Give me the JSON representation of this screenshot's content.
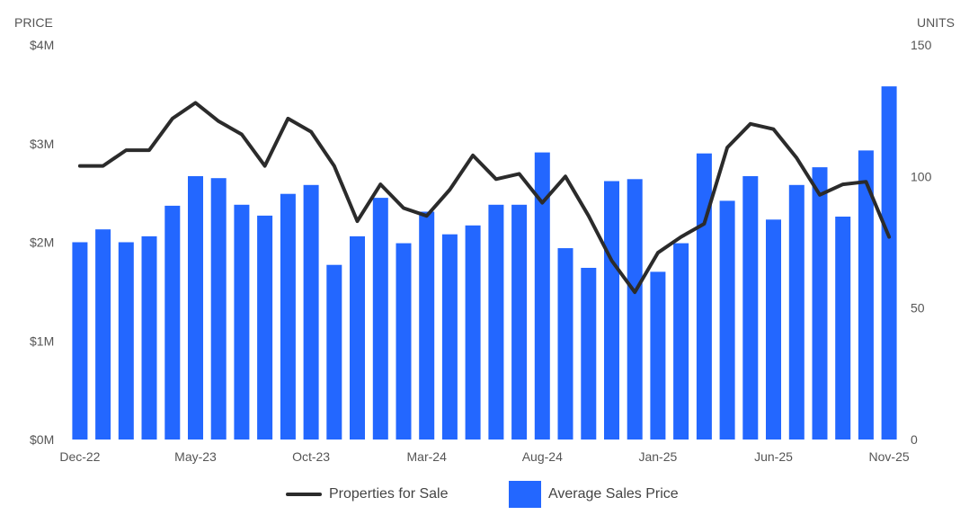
{
  "chart_data": {
    "type": "bar+line",
    "left_axis_title": "PRICE",
    "right_axis_title": "UNITS",
    "left_ticks": [
      "$0M",
      "$1M",
      "$2M",
      "$3M",
      "$4M"
    ],
    "right_ticks": [
      "0",
      "50",
      "100",
      "150"
    ],
    "left_ylim": [
      0,
      4000000
    ],
    "right_ylim": [
      0,
      150
    ],
    "x_tick_labels": [
      "Dec-22",
      "May-23",
      "Oct-23",
      "Mar-24",
      "Aug-24",
      "Jan-25",
      "Jun-25",
      "Nov-25"
    ],
    "categories": [
      "Dec-22",
      "Jan-23",
      "Feb-23",
      "Mar-23",
      "Apr-23",
      "May-23",
      "Jun-23",
      "Jul-23",
      "Aug-23",
      "Sep-23",
      "Oct-23",
      "Nov-23",
      "Dec-23",
      "Jan-24",
      "Feb-24",
      "Mar-24",
      "Apr-24",
      "May-24",
      "Jun-24",
      "Jul-24",
      "Aug-24",
      "Sep-24",
      "Oct-24",
      "Nov-24",
      "Dec-24",
      "Jan-25",
      "Feb-25",
      "Mar-25",
      "Apr-25",
      "May-25",
      "Jun-25",
      "Jul-25",
      "Aug-25",
      "Sep-25",
      "Oct-25",
      "Nov-25"
    ],
    "series": [
      {
        "name": "Average Sales Price",
        "kind": "bar",
        "axis": "left",
        "color": "#2367ff",
        "values": [
          2000000,
          2130000,
          2000000,
          2060000,
          2370000,
          2670000,
          2650000,
          2380000,
          2270000,
          2490000,
          2580000,
          1770000,
          2060000,
          2450000,
          1990000,
          2310000,
          2080000,
          2170000,
          2380000,
          2380000,
          2910000,
          1940000,
          1740000,
          2620000,
          2640000,
          1700000,
          1990000,
          2900000,
          2420000,
          2670000,
          2230000,
          2580000,
          2760000,
          2260000,
          2930000,
          3580000
        ]
      },
      {
        "name": "Properties for Sale",
        "kind": "line",
        "axis": "right",
        "color": "#2b2b2b",
        "values": [
          104,
          104,
          110,
          110,
          122,
          128,
          121,
          116,
          104,
          122,
          117,
          104,
          83,
          97,
          88,
          85,
          95,
          108,
          99,
          101,
          90,
          100,
          85,
          68,
          56,
          71,
          77,
          82,
          111,
          120,
          118,
          107,
          93,
          97,
          98,
          77
        ]
      }
    ],
    "legend": [
      {
        "label": "Properties for Sale",
        "symbol": "line",
        "color": "#2b2b2b"
      },
      {
        "label": "Average Sales Price",
        "symbol": "box",
        "color": "#2367ff"
      }
    ],
    "legend_position": "bottom-center",
    "grid": false
  }
}
